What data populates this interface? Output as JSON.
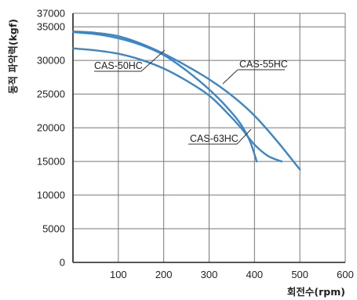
{
  "chart_data": {
    "type": "line",
    "title": "",
    "xlabel": "회전수(rpm)",
    "ylabel": "동적 파악력(kgf)",
    "xlim": [
      0,
      600
    ],
    "ylim": [
      0,
      37000
    ],
    "xticks": [
      100,
      200,
      300,
      400,
      500,
      600
    ],
    "yticks": [
      0,
      5000,
      10000,
      15000,
      20000,
      25000,
      30000,
      35000,
      37000
    ],
    "x_tick_labels": [
      "100",
      "200",
      "300",
      "400",
      "500",
      "600"
    ],
    "y_tick_labels": [
      "0",
      "5000",
      "10000",
      "15000",
      "20000",
      "25000",
      "30000",
      "35000",
      "37000"
    ],
    "grid": true,
    "legend": "callout labels",
    "series": [
      {
        "name": "CAS-50HC",
        "color": "#3d86c6",
        "points": [
          [
            0,
            31800
          ],
          [
            50,
            31500
          ],
          [
            100,
            31000
          ],
          [
            150,
            30100
          ],
          [
            200,
            28800
          ],
          [
            250,
            27000
          ],
          [
            300,
            24800
          ],
          [
            340,
            22200
          ],
          [
            370,
            20000
          ],
          [
            400,
            17500
          ],
          [
            430,
            15800
          ],
          [
            460,
            15000
          ]
        ]
      },
      {
        "name": "CAS-55HC",
        "color": "#3d86c6",
        "points": [
          [
            0,
            34300
          ],
          [
            50,
            34100
          ],
          [
            100,
            33600
          ],
          [
            150,
            32500
          ],
          [
            200,
            31000
          ],
          [
            250,
            29200
          ],
          [
            300,
            27200
          ],
          [
            350,
            24800
          ],
          [
            400,
            21800
          ],
          [
            450,
            18000
          ],
          [
            500,
            13800
          ]
        ]
      },
      {
        "name": "CAS-63HC",
        "color": "#3d86c6",
        "points": [
          [
            0,
            34200
          ],
          [
            50,
            33900
          ],
          [
            100,
            33300
          ],
          [
            150,
            32300
          ],
          [
            200,
            30800
          ],
          [
            250,
            28500
          ],
          [
            300,
            25700
          ],
          [
            340,
            23000
          ],
          [
            370,
            20500
          ],
          [
            390,
            18000
          ],
          [
            405,
            15000
          ]
        ]
      }
    ]
  },
  "callouts": [
    {
      "series": "CAS-50HC",
      "label": "CAS-50HC"
    },
    {
      "series": "CAS-55HC",
      "label": "CAS-55HC"
    },
    {
      "series": "CAS-63HC",
      "label": "CAS-63HC"
    }
  ]
}
